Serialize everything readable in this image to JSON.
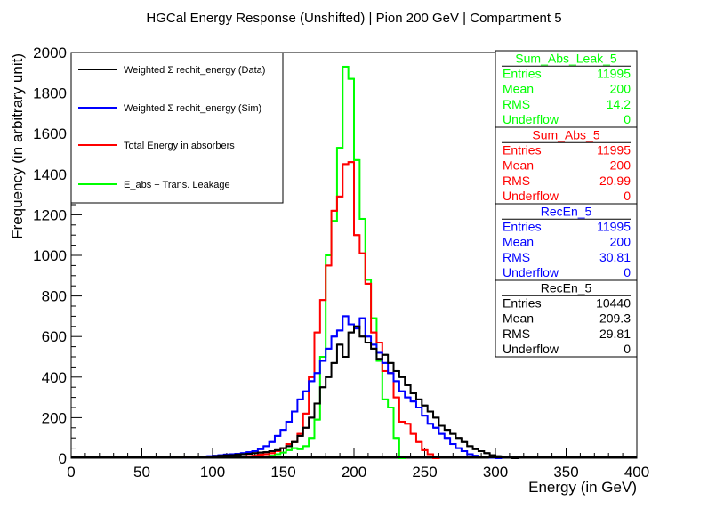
{
  "chart_data": {
    "type": "histogram",
    "title": "HGCal Energy Response (Unshifted) | Pion 200 GeV | Compartment 5",
    "xlabel": "Energy (in GeV)",
    "ylabel": "Frequency (in arbitrary unit)",
    "xlim": [
      0,
      400
    ],
    "ylim": [
      0,
      2000
    ],
    "bin_width": 4,
    "x_ticks": [
      "0",
      "50",
      "100",
      "150",
      "200",
      "250",
      "300",
      "350",
      "400"
    ],
    "y_ticks": [
      "0",
      "200",
      "400",
      "600",
      "800",
      "1000",
      "1200",
      "1400",
      "1600",
      "1800",
      "2000"
    ],
    "legend_position": "top-left",
    "series": [
      {
        "name": "E_abs + Trans. Leakage",
        "color": "#00ff00",
        "bin_starts": [
          132,
          136,
          140,
          144,
          148,
          152,
          156,
          160,
          164,
          168,
          172,
          176,
          180,
          184,
          188,
          192,
          196,
          200,
          204,
          208,
          212,
          216,
          220,
          224,
          228,
          232
        ],
        "counts": [
          5,
          8,
          12,
          20,
          28,
          40,
          50,
          45,
          60,
          100,
          190,
          500,
          1000,
          1170,
          1530,
          1930,
          1870,
          1470,
          1180,
          880,
          690,
          480,
          290,
          250,
          100,
          0
        ]
      },
      {
        "name": "Total Energy in absorbers",
        "color": "#ff0000",
        "bin_starts": [
          120,
          124,
          128,
          132,
          136,
          140,
          144,
          148,
          152,
          156,
          160,
          164,
          168,
          172,
          176,
          180,
          184,
          188,
          192,
          196,
          200,
          204,
          208,
          212,
          216,
          220,
          224,
          228,
          232,
          236,
          240,
          244,
          248,
          252,
          256
        ],
        "counts": [
          5,
          10,
          12,
          18,
          20,
          25,
          35,
          50,
          70,
          80,
          120,
          220,
          400,
          620,
          780,
          950,
          1220,
          1290,
          1450,
          1460,
          1100,
          1010,
          860,
          620,
          570,
          430,
          420,
          300,
          180,
          170,
          120,
          80,
          40,
          20,
          0
        ]
      },
      {
        "name": "Weighted Σ rechit_energy (Sim)",
        "color": "#0000ff",
        "bin_starts": [
          80,
          84,
          88,
          92,
          96,
          100,
          104,
          108,
          112,
          116,
          120,
          124,
          128,
          132,
          136,
          140,
          144,
          148,
          152,
          156,
          160,
          164,
          168,
          172,
          176,
          180,
          184,
          188,
          192,
          196,
          200,
          204,
          208,
          212,
          216,
          220,
          224,
          228,
          232,
          236,
          240,
          244,
          248,
          252,
          256,
          260,
          264,
          268,
          272,
          276,
          280,
          284,
          288,
          292,
          296,
          300
        ],
        "counts": [
          3,
          5,
          6,
          8,
          10,
          12,
          15,
          18,
          20,
          22,
          25,
          30,
          35,
          45,
          60,
          80,
          110,
          140,
          180,
          230,
          290,
          330,
          380,
          420,
          480,
          540,
          600,
          630,
          700,
          660,
          640,
          690,
          600,
          560,
          520,
          470,
          420,
          380,
          330,
          300,
          280,
          250,
          210,
          170,
          150,
          120,
          100,
          70,
          50,
          35,
          20,
          12,
          8,
          5,
          3,
          0
        ]
      },
      {
        "name": "Weighted Σ rechit_energy (Data)",
        "color": "#000000",
        "bin_starts": [
          80,
          84,
          88,
          92,
          96,
          100,
          104,
          108,
          112,
          116,
          120,
          124,
          128,
          132,
          136,
          140,
          144,
          148,
          152,
          156,
          160,
          164,
          168,
          172,
          176,
          180,
          184,
          188,
          192,
          196,
          200,
          204,
          208,
          212,
          216,
          220,
          224,
          228,
          232,
          236,
          240,
          244,
          248,
          252,
          256,
          260,
          264,
          268,
          272,
          276,
          280,
          284,
          288,
          292,
          296,
          300,
          304,
          308,
          312
        ],
        "counts": [
          3,
          5,
          6,
          8,
          8,
          10,
          12,
          14,
          15,
          18,
          20,
          22,
          25,
          28,
          30,
          35,
          40,
          50,
          60,
          80,
          110,
          150,
          200,
          270,
          350,
          400,
          470,
          560,
          500,
          620,
          650,
          600,
          570,
          540,
          490,
          510,
          470,
          430,
          400,
          360,
          320,
          290,
          260,
          230,
          200,
          160,
          140,
          120,
          100,
          80,
          60,
          45,
          35,
          25,
          15,
          10,
          5,
          3,
          0
        ]
      }
    ],
    "stats_boxes": [
      {
        "title": "Sum_Abs_Leak_5",
        "color": "#00ff00",
        "rows": [
          [
            "Entries",
            "11995"
          ],
          [
            "Mean",
            "200"
          ],
          [
            "RMS",
            "14.2"
          ],
          [
            "Underflow",
            "0"
          ]
        ]
      },
      {
        "title": "Sum_Abs_5",
        "color": "#ff0000",
        "rows": [
          [
            "Entries",
            "11995"
          ],
          [
            "Mean",
            "200"
          ],
          [
            "RMS",
            "20.99"
          ],
          [
            "Underflow",
            "0"
          ]
        ]
      },
      {
        "title": "RecEn_5",
        "color": "#0000ff",
        "rows": [
          [
            "Entries",
            "11995"
          ],
          [
            "Mean",
            "200"
          ],
          [
            "RMS",
            "30.81"
          ],
          [
            "Underflow",
            "0"
          ]
        ]
      },
      {
        "title": "RecEn_5",
        "color": "#000000",
        "rows": [
          [
            "Entries",
            "10440"
          ],
          [
            "Mean",
            "209.3"
          ],
          [
            "RMS",
            "29.81"
          ],
          [
            "Underflow",
            "0"
          ]
        ]
      }
    ],
    "legend": [
      {
        "label": "Weighted Σ rechit_energy (Data)",
        "color": "#000000"
      },
      {
        "label": "Weighted Σ rechit_energy (Sim)",
        "color": "#0000ff"
      },
      {
        "label": "Total Energy in absorbers",
        "color": "#ff0000"
      },
      {
        "label": "E_abs + Trans. Leakage",
        "color": "#00ff00"
      }
    ]
  }
}
